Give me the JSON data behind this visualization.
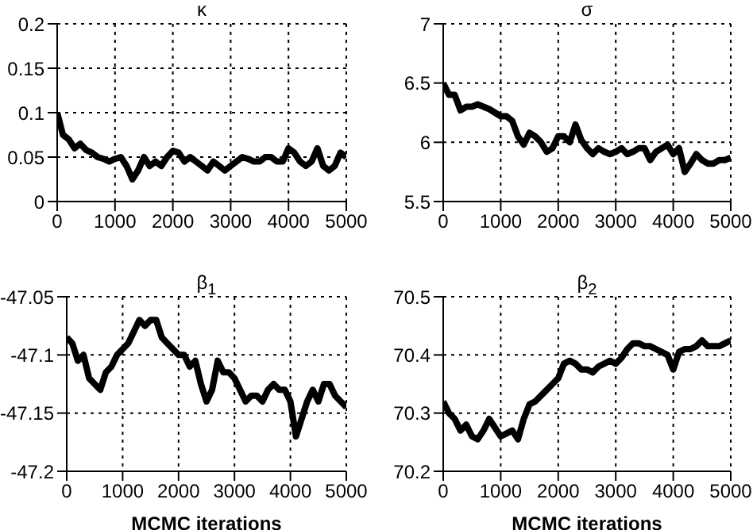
{
  "chart_data": [
    {
      "type": "line",
      "title": "κ",
      "x": [
        0,
        100,
        200,
        300,
        400,
        500,
        600,
        700,
        800,
        900,
        1000,
        1100,
        1200,
        1300,
        1400,
        1500,
        1600,
        1700,
        1800,
        1900,
        2000,
        2100,
        2200,
        2300,
        2400,
        2500,
        2600,
        2700,
        2800,
        2900,
        3000,
        3100,
        3200,
        3300,
        3400,
        3500,
        3600,
        3700,
        3800,
        3900,
        4000,
        4100,
        4200,
        4300,
        4400,
        4500,
        4600,
        4700,
        4800,
        4900,
        5000
      ],
      "series": [
        {
          "color": "#000000",
          "values": [
            0.1,
            0.075,
            0.07,
            0.06,
            0.065,
            0.058,
            0.055,
            0.05,
            0.048,
            0.045,
            0.048,
            0.05,
            0.04,
            0.025,
            0.035,
            0.05,
            0.04,
            0.045,
            0.04,
            0.05,
            0.057,
            0.055,
            0.045,
            0.05,
            0.045,
            0.04,
            0.035,
            0.045,
            0.04,
            0.035,
            0.04,
            0.045,
            0.05,
            0.048,
            0.045,
            0.045,
            0.05,
            0.05,
            0.045,
            0.045,
            0.06,
            0.055,
            0.045,
            0.04,
            0.045,
            0.06,
            0.04,
            0.035,
            0.04,
            0.055,
            0.05
          ]
        }
      ],
      "xlim": [
        0,
        5000
      ],
      "xticks": [
        0,
        1000,
        2000,
        3000,
        4000,
        5000
      ],
      "ylim": [
        0,
        0.2
      ],
      "yticks": [
        0,
        0.05,
        0.1,
        0.15,
        0.2
      ],
      "grid": true,
      "line_style": "solid",
      "marker": "none"
    },
    {
      "type": "line",
      "title": "σ",
      "x": [
        0,
        100,
        200,
        300,
        400,
        500,
        600,
        700,
        800,
        900,
        1000,
        1100,
        1200,
        1300,
        1400,
        1500,
        1600,
        1700,
        1800,
        1900,
        2000,
        2100,
        2200,
        2300,
        2400,
        2500,
        2600,
        2700,
        2800,
        2900,
        3000,
        3100,
        3200,
        3300,
        3400,
        3500,
        3600,
        3700,
        3800,
        3900,
        4000,
        4100,
        4200,
        4300,
        4400,
        4500,
        4600,
        4700,
        4800,
        4900,
        5000
      ],
      "series": [
        {
          "color": "#000000",
          "values": [
            6.5,
            6.4,
            6.4,
            6.27,
            6.3,
            6.3,
            6.32,
            6.3,
            6.28,
            6.25,
            6.22,
            6.22,
            6.18,
            6.05,
            5.98,
            6.08,
            6.05,
            6.0,
            5.92,
            5.95,
            6.05,
            6.05,
            6.0,
            6.15,
            6.02,
            5.95,
            5.9,
            5.95,
            5.92,
            5.9,
            5.92,
            5.95,
            5.9,
            5.92,
            5.95,
            5.95,
            5.85,
            5.92,
            5.95,
            5.98,
            5.9,
            5.95,
            5.75,
            5.82,
            5.9,
            5.85,
            5.82,
            5.82,
            5.85,
            5.85,
            5.87
          ]
        }
      ],
      "xlim": [
        0,
        5000
      ],
      "xticks": [
        0,
        1000,
        2000,
        3000,
        4000,
        5000
      ],
      "ylim": [
        5.5,
        7
      ],
      "yticks": [
        5.5,
        6,
        6.5,
        7
      ],
      "grid": true,
      "line_style": "solid",
      "marker": "none"
    },
    {
      "type": "line",
      "title": "β$_{1}$",
      "xlabel": "MCMC iterations",
      "x": [
        0,
        100,
        200,
        300,
        400,
        500,
        600,
        700,
        800,
        900,
        1000,
        1100,
        1200,
        1300,
        1400,
        1500,
        1600,
        1700,
        1800,
        1900,
        2000,
        2100,
        2200,
        2300,
        2400,
        2500,
        2600,
        2700,
        2800,
        2900,
        3000,
        3100,
        3200,
        3300,
        3400,
        3500,
        3600,
        3700,
        3800,
        3900,
        4000,
        4100,
        4200,
        4300,
        4400,
        4500,
        4600,
        4700,
        4800,
        4900,
        5000
      ],
      "series": [
        {
          "color": "#000000",
          "values": [
            -47.085,
            -47.09,
            -47.105,
            -47.1,
            -47.12,
            -47.125,
            -47.13,
            -47.115,
            -47.11,
            -47.1,
            -47.095,
            -47.09,
            -47.08,
            -47.07,
            -47.075,
            -47.07,
            -47.07,
            -47.085,
            -47.09,
            -47.095,
            -47.1,
            -47.1,
            -47.11,
            -47.105,
            -47.125,
            -47.14,
            -47.13,
            -47.105,
            -47.115,
            -47.115,
            -47.12,
            -47.13,
            -47.14,
            -47.135,
            -47.135,
            -47.14,
            -47.13,
            -47.125,
            -47.13,
            -47.13,
            -47.14,
            -47.17,
            -47.155,
            -47.14,
            -47.13,
            -47.14,
            -47.125,
            -47.125,
            -47.135,
            -47.14,
            -47.145
          ]
        }
      ],
      "xlim": [
        0,
        5000
      ],
      "xticks": [
        0,
        1000,
        2000,
        3000,
        4000,
        5000
      ],
      "ylim": [
        -47.2,
        -47.05
      ],
      "yticks": [
        -47.2,
        -47.15,
        -47.1,
        -47.05
      ],
      "grid": true,
      "line_style": "solid",
      "marker": "none"
    },
    {
      "type": "line",
      "title": "β$_{2}$",
      "xlabel": "MCMC iterations",
      "x": [
        0,
        100,
        200,
        300,
        400,
        500,
        600,
        700,
        800,
        900,
        1000,
        1100,
        1200,
        1300,
        1400,
        1500,
        1600,
        1700,
        1800,
        1900,
        2000,
        2100,
        2200,
        2300,
        2400,
        2500,
        2600,
        2700,
        2800,
        2900,
        3000,
        3100,
        3200,
        3300,
        3400,
        3500,
        3600,
        3700,
        3800,
        3900,
        4000,
        4100,
        4200,
        4300,
        4400,
        4500,
        4600,
        4700,
        4800,
        4900,
        5000
      ],
      "series": [
        {
          "color": "#000000",
          "values": [
            70.32,
            70.3,
            70.29,
            70.27,
            70.28,
            70.26,
            70.255,
            70.27,
            70.29,
            70.275,
            70.26,
            70.265,
            70.27,
            70.255,
            70.29,
            70.315,
            70.32,
            70.33,
            70.34,
            70.35,
            70.36,
            70.385,
            70.39,
            70.385,
            70.375,
            70.375,
            70.37,
            70.38,
            70.385,
            70.39,
            70.385,
            70.395,
            70.41,
            70.42,
            70.42,
            70.415,
            70.415,
            70.41,
            70.405,
            70.4,
            70.375,
            70.405,
            70.41,
            70.41,
            70.415,
            70.425,
            70.415,
            70.415,
            70.415,
            70.42,
            70.425
          ]
        }
      ],
      "xlim": [
        0,
        5000
      ],
      "xticks": [
        0,
        1000,
        2000,
        3000,
        4000,
        5000
      ],
      "ylim": [
        70.2,
        70.5
      ],
      "yticks": [
        70.2,
        70.3,
        70.4,
        70.5
      ],
      "grid": true,
      "line_style": "solid",
      "marker": "none"
    }
  ]
}
